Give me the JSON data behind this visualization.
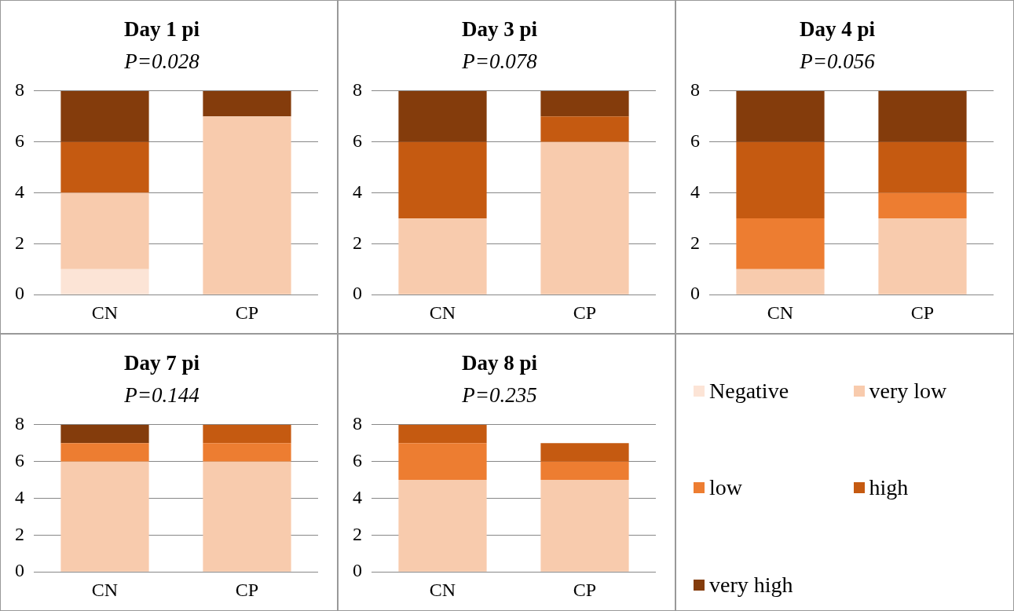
{
  "chart_data": [
    {
      "type": "bar",
      "title": "Day 1 pi",
      "subtitle": "P=0.028",
      "categories": [
        "CN",
        "CP"
      ],
      "stacked": true,
      "ylim": [
        0,
        8
      ],
      "yticks": [
        0,
        2,
        4,
        6,
        8
      ],
      "grid": "y",
      "legend": false,
      "series": [
        {
          "color": "#fce4d6",
          "values": [
            1,
            0
          ]
        },
        {
          "color": "#f8cbad",
          "values": [
            3,
            7
          ]
        },
        {
          "color": "#ed7d31",
          "values": [
            0,
            0
          ]
        },
        {
          "color": "#c55a11",
          "values": [
            2,
            0
          ]
        },
        {
          "color": "#843c0c",
          "values": [
            2,
            1
          ]
        }
      ]
    },
    {
      "type": "bar",
      "title": "Day 3 pi",
      "subtitle": "P=0.078",
      "categories": [
        "CN",
        "CP"
      ],
      "stacked": true,
      "ylim": [
        0,
        8
      ],
      "yticks": [
        0,
        2,
        4,
        6,
        8
      ],
      "grid": "y",
      "legend": false,
      "series": [
        {
          "color": "#fce4d6",
          "values": [
            0,
            0
          ]
        },
        {
          "color": "#f8cbad",
          "values": [
            3,
            6
          ]
        },
        {
          "color": "#ed7d31",
          "values": [
            0,
            0
          ]
        },
        {
          "color": "#c55a11",
          "values": [
            3,
            1
          ]
        },
        {
          "color": "#843c0c",
          "values": [
            2,
            1
          ]
        }
      ]
    },
    {
      "type": "bar",
      "title": "Day 4 pi",
      "subtitle": "P=0.056",
      "categories": [
        "CN",
        "CP"
      ],
      "stacked": true,
      "ylim": [
        0,
        8
      ],
      "yticks": [
        0,
        2,
        4,
        6,
        8
      ],
      "grid": "y",
      "legend": false,
      "series": [
        {
          "color": "#fce4d6",
          "values": [
            0,
            0
          ]
        },
        {
          "color": "#f8cbad",
          "values": [
            1,
            3
          ]
        },
        {
          "color": "#ed7d31",
          "values": [
            2,
            1
          ]
        },
        {
          "color": "#c55a11",
          "values": [
            3,
            2
          ]
        },
        {
          "color": "#843c0c",
          "values": [
            2,
            2
          ]
        }
      ]
    },
    {
      "type": "bar",
      "title": "Day 7 pi",
      "subtitle": "P=0.144",
      "categories": [
        "CN",
        "CP"
      ],
      "stacked": true,
      "ylim": [
        0,
        8
      ],
      "yticks": [
        0,
        2,
        4,
        6,
        8
      ],
      "grid": "y",
      "legend": false,
      "series": [
        {
          "color": "#fce4d6",
          "values": [
            0,
            0
          ]
        },
        {
          "color": "#f8cbad",
          "values": [
            6,
            6
          ]
        },
        {
          "color": "#ed7d31",
          "values": [
            1,
            1
          ]
        },
        {
          "color": "#c55a11",
          "values": [
            0,
            1
          ]
        },
        {
          "color": "#843c0c",
          "values": [
            1,
            0
          ]
        }
      ]
    },
    {
      "type": "bar",
      "title": "Day 8 pi",
      "subtitle": "P=0.235",
      "categories": [
        "CN",
        "CP"
      ],
      "stacked": true,
      "ylim": [
        0,
        8
      ],
      "yticks": [
        0,
        2,
        4,
        6,
        8
      ],
      "grid": "y",
      "legend": "right",
      "series": [
        {
          "name": "Negative",
          "color": "#fce4d6",
          "values": [
            0,
            0
          ]
        },
        {
          "name": "very low",
          "color": "#f8cbad",
          "values": [
            5,
            5
          ]
        },
        {
          "name": "low",
          "color": "#ed7d31",
          "values": [
            2,
            1
          ]
        },
        {
          "name": "high",
          "color": "#c55a11",
          "values": [
            1,
            1
          ]
        },
        {
          "name": "very high",
          "color": "#843c0c",
          "values": [
            0,
            0
          ]
        }
      ]
    }
  ]
}
